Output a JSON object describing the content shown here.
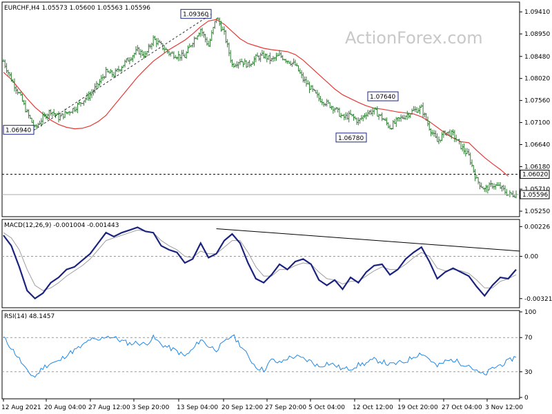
{
  "chart_data": [
    {
      "type": "ohlc",
      "header": "EURCHF,H4  1.05573 1.05600 1.05563 1.05596",
      "watermark": "ActionForex.com",
      "y_ticks": [
        "1.09410",
        "1.08950",
        "1.08480",
        "1.08020",
        "1.07560",
        "1.07100",
        "1.06640",
        "1.06180",
        "1.05710",
        "1.05250"
      ],
      "ylim": [
        1.0515,
        1.096
      ],
      "price_tag": "1.05596",
      "level_tag": "1.06020",
      "current_price": 1.05596,
      "level": 1.0602,
      "annotations": [
        {
          "text": "1.09360",
          "x": 51.5,
          "y": 1.0936
        },
        {
          "text": "1.06940",
          "x": 5,
          "y": 1.0694
        },
        {
          "text": "1.07640",
          "x": 97.5,
          "y": 1.0764
        },
        {
          "text": "1.06780",
          "x": 90,
          "y": 1.0678
        }
      ],
      "ma_color": "#e53935",
      "bar_color": "#2e7d32",
      "ma_values": [
        1.0815,
        1.08,
        1.078,
        1.076,
        1.0742,
        1.0728,
        1.0715,
        1.0706,
        1.07,
        1.0697,
        1.0698,
        1.0703,
        1.0712,
        1.0725,
        1.0745,
        1.0765,
        1.0785,
        1.0805,
        1.0822,
        1.0838,
        1.085,
        1.0862,
        1.0872,
        1.0882,
        1.0895,
        1.091,
        1.0922,
        1.0925,
        1.0915,
        1.09,
        1.0885,
        1.0875,
        1.087,
        1.0865,
        1.0862,
        1.086,
        1.0858,
        1.0852,
        1.084,
        1.0825,
        1.081,
        1.0795,
        1.078,
        1.0768,
        1.076,
        1.0752,
        1.0745,
        1.074,
        1.0738,
        1.0735,
        1.0732,
        1.073,
        1.0728,
        1.0722,
        1.0712,
        1.07,
        1.0688,
        1.0678,
        1.067,
        1.0668,
        1.0652,
        1.0637,
        1.0624,
        1.0612,
        1.0598
      ]
    },
    {
      "type": "line",
      "header": "MACD(12,26,9) -0.001004 -0.001443",
      "y_ticks": [
        "0.00226",
        "0.00",
        "-0.003211"
      ],
      "ylim": [
        -0.0038,
        0.0027
      ],
      "zero_tag": "0.00",
      "series": [
        {
          "values": [
            0.0016,
            0.0008,
            -0.0008,
            -0.0026,
            -0.0032,
            -0.0028,
            -0.002,
            -0.0016,
            -0.001,
            -0.0008,
            -0.0003,
            0.0002,
            0.001,
            0.0018,
            0.0015,
            0.0018,
            0.002,
            0.0022,
            0.0019,
            0.0018,
            0.0008,
            0.0005,
            0.0003,
            -0.0005,
            -0.0002,
            0.001,
            -0.0001,
            0.0002,
            0.0012,
            0.0017,
            0.001,
            -0.0005,
            -0.0017,
            -0.002,
            -0.0014,
            -0.0006,
            -0.001,
            -0.0004,
            -0.0002,
            -0.0006,
            -0.0018,
            -0.0022,
            -0.0018,
            -0.0025,
            -0.0016,
            -0.002,
            -0.0012,
            -0.0007,
            -0.0006,
            -0.0014,
            -0.001,
            -0.0002,
            0.0003,
            0.0007,
            -0.0004,
            -0.0017,
            -0.0012,
            -0.0009,
            -0.0012,
            -0.0015,
            -0.0023,
            -0.003,
            -0.0022,
            -0.0016,
            -0.0017,
            -0.001
          ]
        },
        {
          "values": [
            0.0018,
            0.0014,
            0.0005,
            -0.001,
            -0.0022,
            -0.0026,
            -0.0024,
            -0.002,
            -0.0015,
            -0.0011,
            -0.0007,
            -0.0002,
            0.0005,
            0.0012,
            0.0014,
            0.0016,
            0.0018,
            0.002,
            0.0019,
            0.0018,
            0.0012,
            0.0008,
            0.0005,
            0.0,
            -0.0001,
            0.0004,
            0.0002,
            0.0002,
            0.0007,
            0.0012,
            0.0012,
            0.0003,
            -0.0008,
            -0.0015,
            -0.0015,
            -0.001,
            -0.001,
            -0.0007,
            -0.0005,
            -0.0006,
            -0.0012,
            -0.0017,
            -0.0018,
            -0.0021,
            -0.0019,
            -0.0019,
            -0.0015,
            -0.0011,
            -0.0008,
            -0.001,
            -0.001,
            -0.0006,
            -0.0001,
            0.0003,
            0.0,
            -0.0009,
            -0.0011,
            -0.001,
            -0.0011,
            -0.0013,
            -0.0018,
            -0.0024,
            -0.0024,
            -0.0019,
            -0.0017,
            -0.0014
          ]
        }
      ],
      "trendline": [
        [
          0.2,
          0.0021
        ],
        [
          1.0,
          0.0004
        ]
      ]
    },
    {
      "type": "line",
      "header": "RSI(14) 48.1457",
      "y_ticks": [
        "100",
        "70",
        "30",
        "0"
      ],
      "ylim": [
        0,
        100
      ],
      "levels": [
        70,
        30
      ],
      "line_color": "#1e88e5",
      "series": [
        {
          "values": [
            70,
            58,
            45,
            30,
            24,
            35,
            40,
            42,
            50,
            55,
            60,
            68,
            66,
            72,
            70,
            66,
            63,
            64,
            62,
            70,
            62,
            58,
            54,
            48,
            56,
            68,
            60,
            56,
            64,
            73,
            62,
            48,
            36,
            32,
            44,
            40,
            46,
            48,
            45,
            42,
            36,
            40,
            38,
            33,
            34,
            38,
            40,
            44,
            42,
            38,
            40,
            42,
            48,
            52,
            45,
            36,
            42,
            44,
            40,
            38,
            30,
            26,
            34,
            38,
            42,
            48
          ]
        }
      ]
    }
  ],
  "x_ticks": [
    "12 Aug 2021",
    "20 Aug 04:00",
    "27 Aug 12:00",
    "3 Sep 20:00",
    "13 Sep 04:00",
    "20 Sep 12:00",
    "27 Sep 20:00",
    "5 Oct 04:00",
    "12 Oct 12:00",
    "19 Oct 20:00",
    "27 Oct 04:00",
    "3 Nov 12:00"
  ],
  "price_values": [
    1.0838,
    1.08,
    1.077,
    1.073,
    1.0698,
    1.072,
    1.0735,
    1.072,
    1.073,
    1.074,
    1.0755,
    1.0768,
    1.079,
    1.0815,
    1.081,
    1.0828,
    1.0845,
    1.086,
    1.085,
    1.0885,
    1.087,
    1.0855,
    1.085,
    1.0848,
    1.088,
    1.0905,
    1.087,
    1.093,
    1.0895,
    1.083,
    1.084,
    1.083,
    1.0845,
    1.085,
    1.084,
    1.085,
    1.084,
    1.083,
    1.08,
    1.078,
    1.076,
    1.075,
    1.074,
    1.072,
    1.0725,
    1.0712,
    1.073,
    1.0735,
    1.072,
    1.07,
    1.0715,
    1.0725,
    1.0735,
    1.074,
    1.07,
    1.067,
    1.069,
    1.0685,
    1.066,
    1.064,
    1.059,
    1.057,
    1.058,
    1.0575,
    1.056,
    1.056
  ]
}
